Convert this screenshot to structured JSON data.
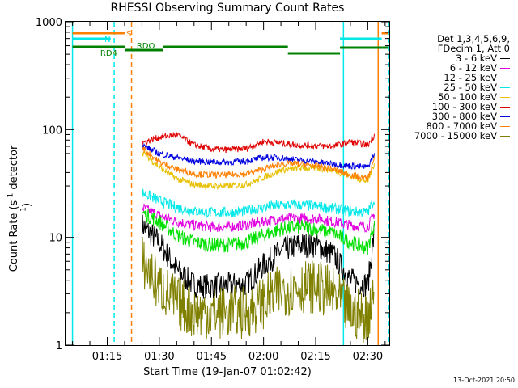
{
  "title": "RHESSI Observing Summary Count Rates",
  "xlabel": "Start Time (19-Jan-07 01:02:42)",
  "ylabel_main": "Count Rate (s",
  "ylabel_sup": "-1",
  "ylabel_rest": " detector",
  "ylabel_sup2": "-1",
  "ylabel_end": ")",
  "timestamp": "13-Oct-2021 20:50",
  "legend": {
    "header1": "Det 1,3,4,5,6,9,",
    "header2": "FDecim 1, Att 0",
    "entries": [
      {
        "label": "3 - 6 keV",
        "color": "#000000"
      },
      {
        "label": "6 - 12 keV",
        "color": "#e000e0"
      },
      {
        "label": "12 - 25 keV",
        "color": "#00e000"
      },
      {
        "label": "25 - 50 keV",
        "color": "#00e8e8"
      },
      {
        "label": "50 - 100 keV",
        "color": "#e8c000"
      },
      {
        "label": "100 - 300 keV",
        "color": "#e00000"
      },
      {
        "label": "300 - 800 keV",
        "color": "#0000e0"
      },
      {
        "label": "800 - 7000 keV",
        "color": "#ff8000"
      },
      {
        "label": "7000 - 15000 keV",
        "color": "#808000"
      }
    ]
  },
  "flags": {
    "s_label": "S",
    "s_color": "#ff8000",
    "n_label": "N",
    "n_color": "#00e8e8",
    "rd4_label": "RD4",
    "rdo_label": "RDO",
    "rd_color": "#008000"
  },
  "chart_data": {
    "type": "line",
    "title": "RHESSI Observing Summary Count Rates",
    "xlabel": "Start Time (19-Jan-07 01:02:42)",
    "ylabel": "Count Rate (s-1 detector-1)",
    "yscale": "log",
    "ylim": [
      1,
      1000
    ],
    "xlim_minutes": [
      1.05,
      2.603
    ],
    "x_ticks": [
      "01:15",
      "01:30",
      "01:45",
      "02:00",
      "02:15",
      "02:30"
    ],
    "y_ticks": [
      "1",
      "10",
      "100",
      "1000"
    ],
    "x_unit": "time (hh:mm) UT",
    "series": [
      {
        "name": "3 - 6 keV",
        "points": [
          [
            "01:25",
            13
          ],
          [
            "01:30",
            9
          ],
          [
            "01:35",
            5
          ],
          [
            "01:40",
            3.6
          ],
          [
            "01:45",
            3.5
          ],
          [
            "01:50",
            3.6
          ],
          [
            "01:55",
            3.7
          ],
          [
            "02:00",
            5.5
          ],
          [
            "02:05",
            7.5
          ],
          [
            "02:10",
            8.5
          ],
          [
            "02:15",
            8.5
          ],
          [
            "02:20",
            7
          ],
          [
            "02:25",
            4
          ],
          [
            "02:30",
            3.6
          ],
          [
            "02:32",
            12
          ]
        ]
      },
      {
        "name": "6 - 12 keV",
        "points": [
          [
            "01:25",
            19
          ],
          [
            "01:30",
            16
          ],
          [
            "01:35",
            14
          ],
          [
            "01:40",
            13
          ],
          [
            "01:45",
            12.5
          ],
          [
            "01:50",
            12.5
          ],
          [
            "01:55",
            13
          ],
          [
            "02:00",
            14
          ],
          [
            "02:05",
            15
          ],
          [
            "02:10",
            15
          ],
          [
            "02:15",
            15
          ],
          [
            "02:20",
            14
          ],
          [
            "02:25",
            13
          ],
          [
            "02:30",
            12.5
          ],
          [
            "02:32",
            17
          ]
        ]
      },
      {
        "name": "12 - 25 keV",
        "points": [
          [
            "01:25",
            17
          ],
          [
            "01:30",
            14
          ],
          [
            "01:35",
            10.5
          ],
          [
            "01:40",
            9
          ],
          [
            "01:45",
            8.5
          ],
          [
            "01:50",
            8.5
          ],
          [
            "01:55",
            9
          ],
          [
            "02:00",
            10.5
          ],
          [
            "02:05",
            12
          ],
          [
            "02:10",
            12.5
          ],
          [
            "02:15",
            12
          ],
          [
            "02:20",
            11
          ],
          [
            "02:25",
            9
          ],
          [
            "02:30",
            8
          ],
          [
            "02:32",
            14
          ]
        ]
      },
      {
        "name": "25 - 50 keV",
        "points": [
          [
            "01:25",
            26
          ],
          [
            "01:30",
            22
          ],
          [
            "01:35",
            19
          ],
          [
            "01:40",
            17.5
          ],
          [
            "01:45",
            17
          ],
          [
            "01:50",
            17
          ],
          [
            "01:55",
            17.5
          ],
          [
            "02:00",
            19
          ],
          [
            "02:05",
            20
          ],
          [
            "02:10",
            20
          ],
          [
            "02:15",
            19.5
          ],
          [
            "02:20",
            18.5
          ],
          [
            "02:25",
            17.5
          ],
          [
            "02:30",
            17
          ],
          [
            "02:32",
            23
          ]
        ]
      },
      {
        "name": "50 - 100 keV",
        "points": [
          [
            "01:25",
            62
          ],
          [
            "01:30",
            45
          ],
          [
            "01:35",
            35
          ],
          [
            "01:40",
            31
          ],
          [
            "01:45",
            30
          ],
          [
            "01:50",
            30
          ],
          [
            "01:55",
            31
          ],
          [
            "02:00",
            36
          ],
          [
            "02:05",
            42
          ],
          [
            "02:10",
            44
          ],
          [
            "02:15",
            44
          ],
          [
            "02:20",
            42
          ],
          [
            "02:25",
            37
          ],
          [
            "02:30",
            33
          ],
          [
            "02:32",
            50
          ]
        ]
      },
      {
        "name": "100 - 300 keV",
        "points": [
          [
            "01:25",
            75
          ],
          [
            "01:30",
            85
          ],
          [
            "01:35",
            90
          ],
          [
            "01:40",
            72
          ],
          [
            "01:45",
            66
          ],
          [
            "01:50",
            65
          ],
          [
            "01:55",
            67
          ],
          [
            "02:00",
            78
          ],
          [
            "02:05",
            75
          ],
          [
            "02:10",
            72
          ],
          [
            "02:15",
            71
          ],
          [
            "02:20",
            70
          ],
          [
            "02:25",
            77
          ],
          [
            "02:30",
            72
          ],
          [
            "02:32",
            90
          ]
        ]
      },
      {
        "name": "300 - 800 keV",
        "points": [
          [
            "01:25",
            72
          ],
          [
            "01:30",
            60
          ],
          [
            "01:35",
            55
          ],
          [
            "01:40",
            51
          ],
          [
            "01:45",
            50
          ],
          [
            "01:50",
            50
          ],
          [
            "01:55",
            51
          ],
          [
            "02:00",
            55
          ],
          [
            "02:05",
            55
          ],
          [
            "02:10",
            52
          ],
          [
            "02:15",
            50
          ],
          [
            "02:20",
            48
          ],
          [
            "02:25",
            46
          ],
          [
            "02:30",
            45
          ],
          [
            "02:32",
            60
          ]
        ]
      },
      {
        "name": "800 - 7000 keV",
        "points": [
          [
            "01:25",
            68
          ],
          [
            "01:30",
            50
          ],
          [
            "01:35",
            43
          ],
          [
            "01:40",
            39
          ],
          [
            "01:45",
            38
          ],
          [
            "01:50",
            38
          ],
          [
            "01:55",
            39
          ],
          [
            "02:00",
            43
          ],
          [
            "02:05",
            48
          ],
          [
            "02:10",
            48
          ],
          [
            "02:15",
            46
          ],
          [
            "02:20",
            43
          ],
          [
            "02:25",
            38
          ],
          [
            "02:30",
            35
          ],
          [
            "02:32",
            55
          ]
        ]
      },
      {
        "name": "7000 - 15000 keV",
        "points": [
          [
            "01:25",
            6
          ],
          [
            "01:30",
            3.5
          ],
          [
            "01:35",
            2.5
          ],
          [
            "01:40",
            2
          ],
          [
            "01:45",
            2
          ],
          [
            "01:50",
            2
          ],
          [
            "01:55",
            2
          ],
          [
            "02:00",
            2.5
          ],
          [
            "02:05",
            3.2
          ],
          [
            "02:10",
            3.5
          ],
          [
            "02:15",
            3.5
          ],
          [
            "02:20",
            3
          ],
          [
            "02:25",
            2
          ],
          [
            "02:30",
            1.8
          ],
          [
            "02:32",
            4
          ]
        ]
      }
    ],
    "flag_levels": {
      "S_intervals": [
        [
          "01:05",
          "01:20"
        ],
        [
          "02:34",
          "02:36"
        ]
      ],
      "N_intervals": [
        [
          "01:05",
          "01:16"
        ],
        [
          "02:22",
          "02:34"
        ]
      ],
      "RD4_intervals": [
        [
          "01:05",
          "01:20"
        ]
      ],
      "RDO_intervals": [
        [
          "01:20",
          "01:31"
        ],
        [
          "01:31",
          "02:07"
        ],
        [
          "02:07",
          "02:22"
        ],
        [
          "02:22",
          "02:36"
        ]
      ]
    },
    "vertical_markers": [
      {
        "time": "01:05",
        "color": "#00e8e8",
        "style": "solid"
      },
      {
        "time": "01:17",
        "color": "#00e8e8",
        "style": "dashed"
      },
      {
        "time": "01:22",
        "color": "#ff8000",
        "style": "dashed"
      },
      {
        "time": "02:23",
        "color": "#00e8e8",
        "style": "solid"
      },
      {
        "time": "02:33",
        "color": "#ff8000",
        "style": "solid"
      },
      {
        "time": "02:36",
        "color": "#00e8e8",
        "style": "dashed"
      }
    ],
    "legend_position": "right"
  }
}
